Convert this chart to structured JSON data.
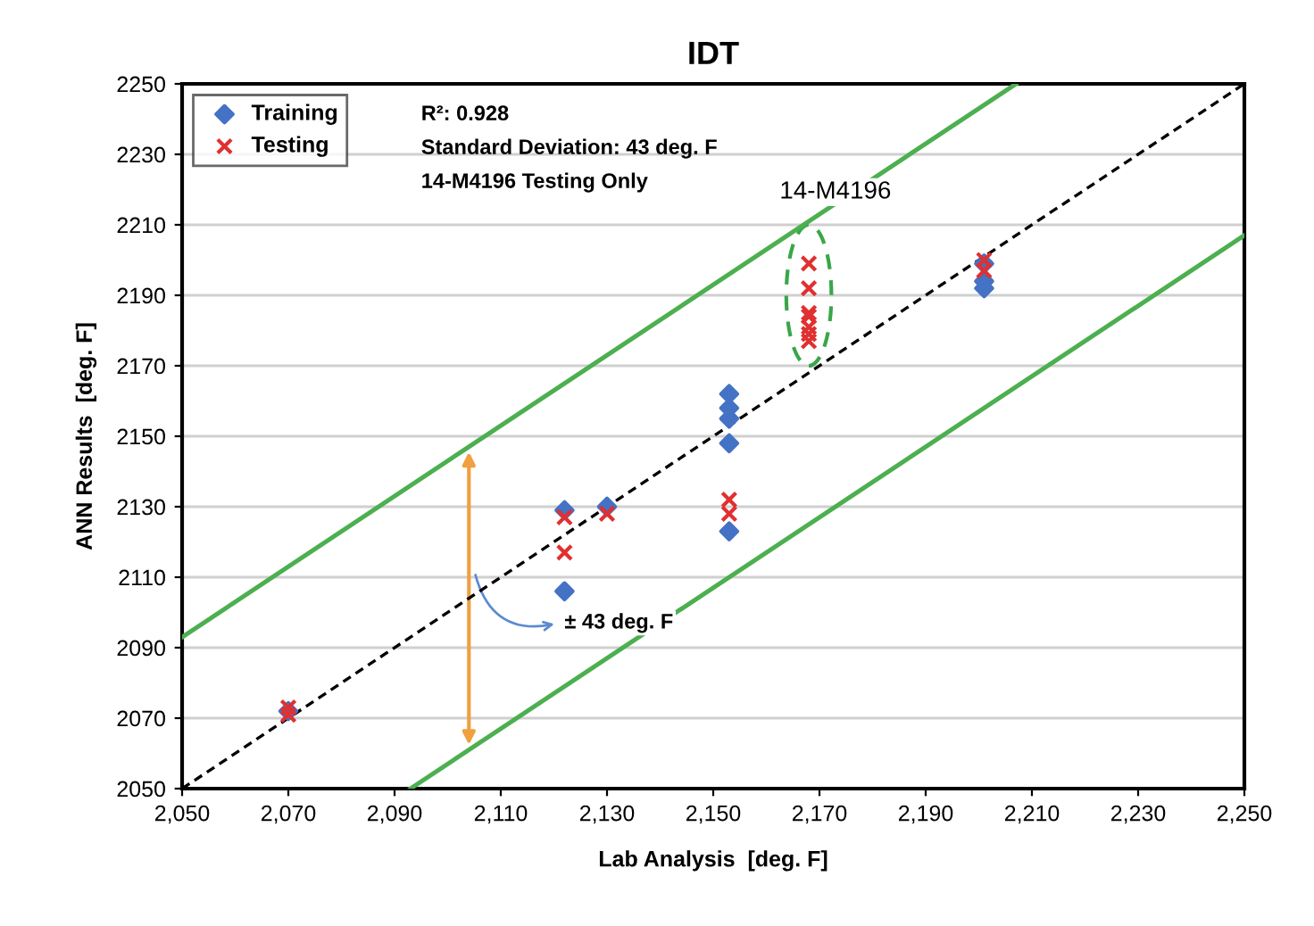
{
  "chart_data": {
    "type": "scatter",
    "title": "IDT",
    "xlabel": "Lab Analysis  [deg. F]",
    "ylabel": "ANN Results  [deg. F]",
    "xlim": [
      2050,
      2250
    ],
    "ylim": [
      2050,
      2250
    ],
    "xticks": [
      {
        "value": 2050,
        "label": "2,050"
      },
      {
        "value": 2070,
        "label": "2,070"
      },
      {
        "value": 2090,
        "label": "2,090"
      },
      {
        "value": 2110,
        "label": "2,110"
      },
      {
        "value": 2130,
        "label": "2,130"
      },
      {
        "value": 2150,
        "label": "2,150"
      },
      {
        "value": 2170,
        "label": "2,170"
      },
      {
        "value": 2190,
        "label": "2,190"
      },
      {
        "value": 2210,
        "label": "2,210"
      },
      {
        "value": 2230,
        "label": "2,230"
      },
      {
        "value": 2250,
        "label": "2,250"
      }
    ],
    "yticks": [
      2050,
      2070,
      2090,
      2110,
      2130,
      2150,
      2170,
      2190,
      2210,
      2230,
      2250
    ],
    "grid": "y",
    "legend": "top left",
    "series": [
      {
        "name": "Training",
        "color": "#4472c4",
        "marker": "diamond",
        "x": [
          2070,
          2122,
          2122,
          2130,
          2153,
          2153,
          2153,
          2153,
          2153,
          2201,
          2201,
          2201
        ],
        "values": [
          2072,
          2129,
          2106,
          2130,
          2162,
          2158,
          2155,
          2148,
          2123,
          2199,
          2194,
          2192
        ]
      },
      {
        "name": "Testing",
        "color": "#e03030",
        "marker": "cross",
        "x": [
          2070,
          2070,
          2122,
          2122,
          2130,
          2153,
          2153,
          2168,
          2168,
          2168,
          2168,
          2168,
          2168,
          2168,
          2201,
          2201
        ],
        "values": [
          2073,
          2071,
          2127,
          2117,
          2128,
          2132,
          2128,
          2199,
          2192,
          2185,
          2184,
          2181,
          2179,
          2177,
          2200,
          2197
        ]
      },
      {
        "type": "line",
        "color": "#000000",
        "line_style": "dashed",
        "x": [
          2050,
          2250
        ],
        "values": [
          2050,
          2250
        ]
      },
      {
        "type": "line",
        "color": "#4caf50",
        "line_style": "solid",
        "x": [
          2050,
          2207
        ],
        "values": [
          2093,
          2250
        ]
      },
      {
        "type": "line",
        "color": "#4caf50",
        "line_style": "solid",
        "x": [
          2093,
          2250
        ],
        "values": [
          2050,
          2207
        ]
      }
    ],
    "annotations": [
      "R²: 0.928",
      "Standard Deviation: 43 deg. F",
      "14-M4196 Testing Only",
      "14-M4196",
      "± 43 deg. F"
    ]
  }
}
